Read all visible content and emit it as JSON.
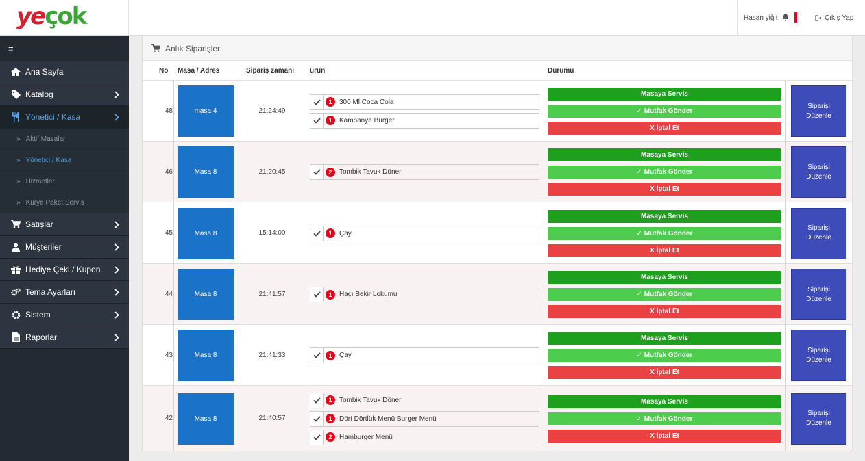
{
  "brand": {
    "part1": "ye",
    "part2": "çok"
  },
  "header": {
    "user_name": "Hasan yiğit",
    "logout_label": "Çıkış Yap"
  },
  "sidebar": {
    "toggle": "≡",
    "items": [
      {
        "label": "Ana Sayfa",
        "icon": "home-icon"
      },
      {
        "label": "Katalog",
        "icon": "tag-icon"
      },
      {
        "label": "Yönetici / Kasa",
        "icon": "utensils-icon"
      },
      {
        "label": "Satışlar",
        "icon": "cart-icon"
      },
      {
        "label": "Müşteriler",
        "icon": "user-icon"
      },
      {
        "label": "Hediye Çeki / Kupon",
        "icon": "gift-icon"
      },
      {
        "label": "Tema Ayarları",
        "icon": "cogs-icon"
      },
      {
        "label": "Sistem",
        "icon": "cog-icon"
      },
      {
        "label": "Raporlar",
        "icon": "file-icon"
      }
    ],
    "subitems": [
      {
        "label": "Aktif Masalar"
      },
      {
        "label": "Yönetici / Kasa"
      },
      {
        "label": "Hizmetler"
      },
      {
        "label": "Kurye Paket Servis"
      }
    ]
  },
  "panel": {
    "title": "Anlık Siparişler",
    "columns": {
      "no": "No",
      "masa": "Masa / Adres",
      "time": "Sipariş zamanı",
      "product": "ürün",
      "status": "Durumu"
    }
  },
  "buttons": {
    "serve": "Masaya Servis",
    "kitchen": "✓ Mutfak Gönder",
    "cancel": "X İptal Et",
    "edit_line1": "Siparişi",
    "edit_line2": "Düzenle"
  },
  "orders": [
    {
      "no": "48",
      "table": "masa 4",
      "time": "21:24:49",
      "items": [
        {
          "qty": "1",
          "name": "300 Ml Coca Cola"
        },
        {
          "qty": "1",
          "name": "Kampanya Burger"
        }
      ]
    },
    {
      "no": "46",
      "table": "Masa 8",
      "time": "21:20:45",
      "items": [
        {
          "qty": "2",
          "name": "Tombik Tavuk Döner"
        }
      ]
    },
    {
      "no": "45",
      "table": "Masa 8",
      "time": "15:14:00",
      "items": [
        {
          "qty": "1",
          "name": "Çay"
        }
      ]
    },
    {
      "no": "44",
      "table": "Masa 8",
      "time": "21:41:57",
      "items": [
        {
          "qty": "1",
          "name": "Hacı Bekir Lokumu"
        }
      ]
    },
    {
      "no": "43",
      "table": "Masa 8",
      "time": "21:41:33",
      "items": [
        {
          "qty": "1",
          "name": "Çay"
        }
      ]
    },
    {
      "no": "42",
      "table": "Masa 8",
      "time": "21:40:57",
      "items": [
        {
          "qty": "1",
          "name": "Tombik Tavuk Döner"
        },
        {
          "qty": "1",
          "name": "Dört Dörtlük Menü Burger Menü"
        },
        {
          "qty": "2",
          "name": "Hamburger Menü"
        }
      ]
    }
  ]
}
